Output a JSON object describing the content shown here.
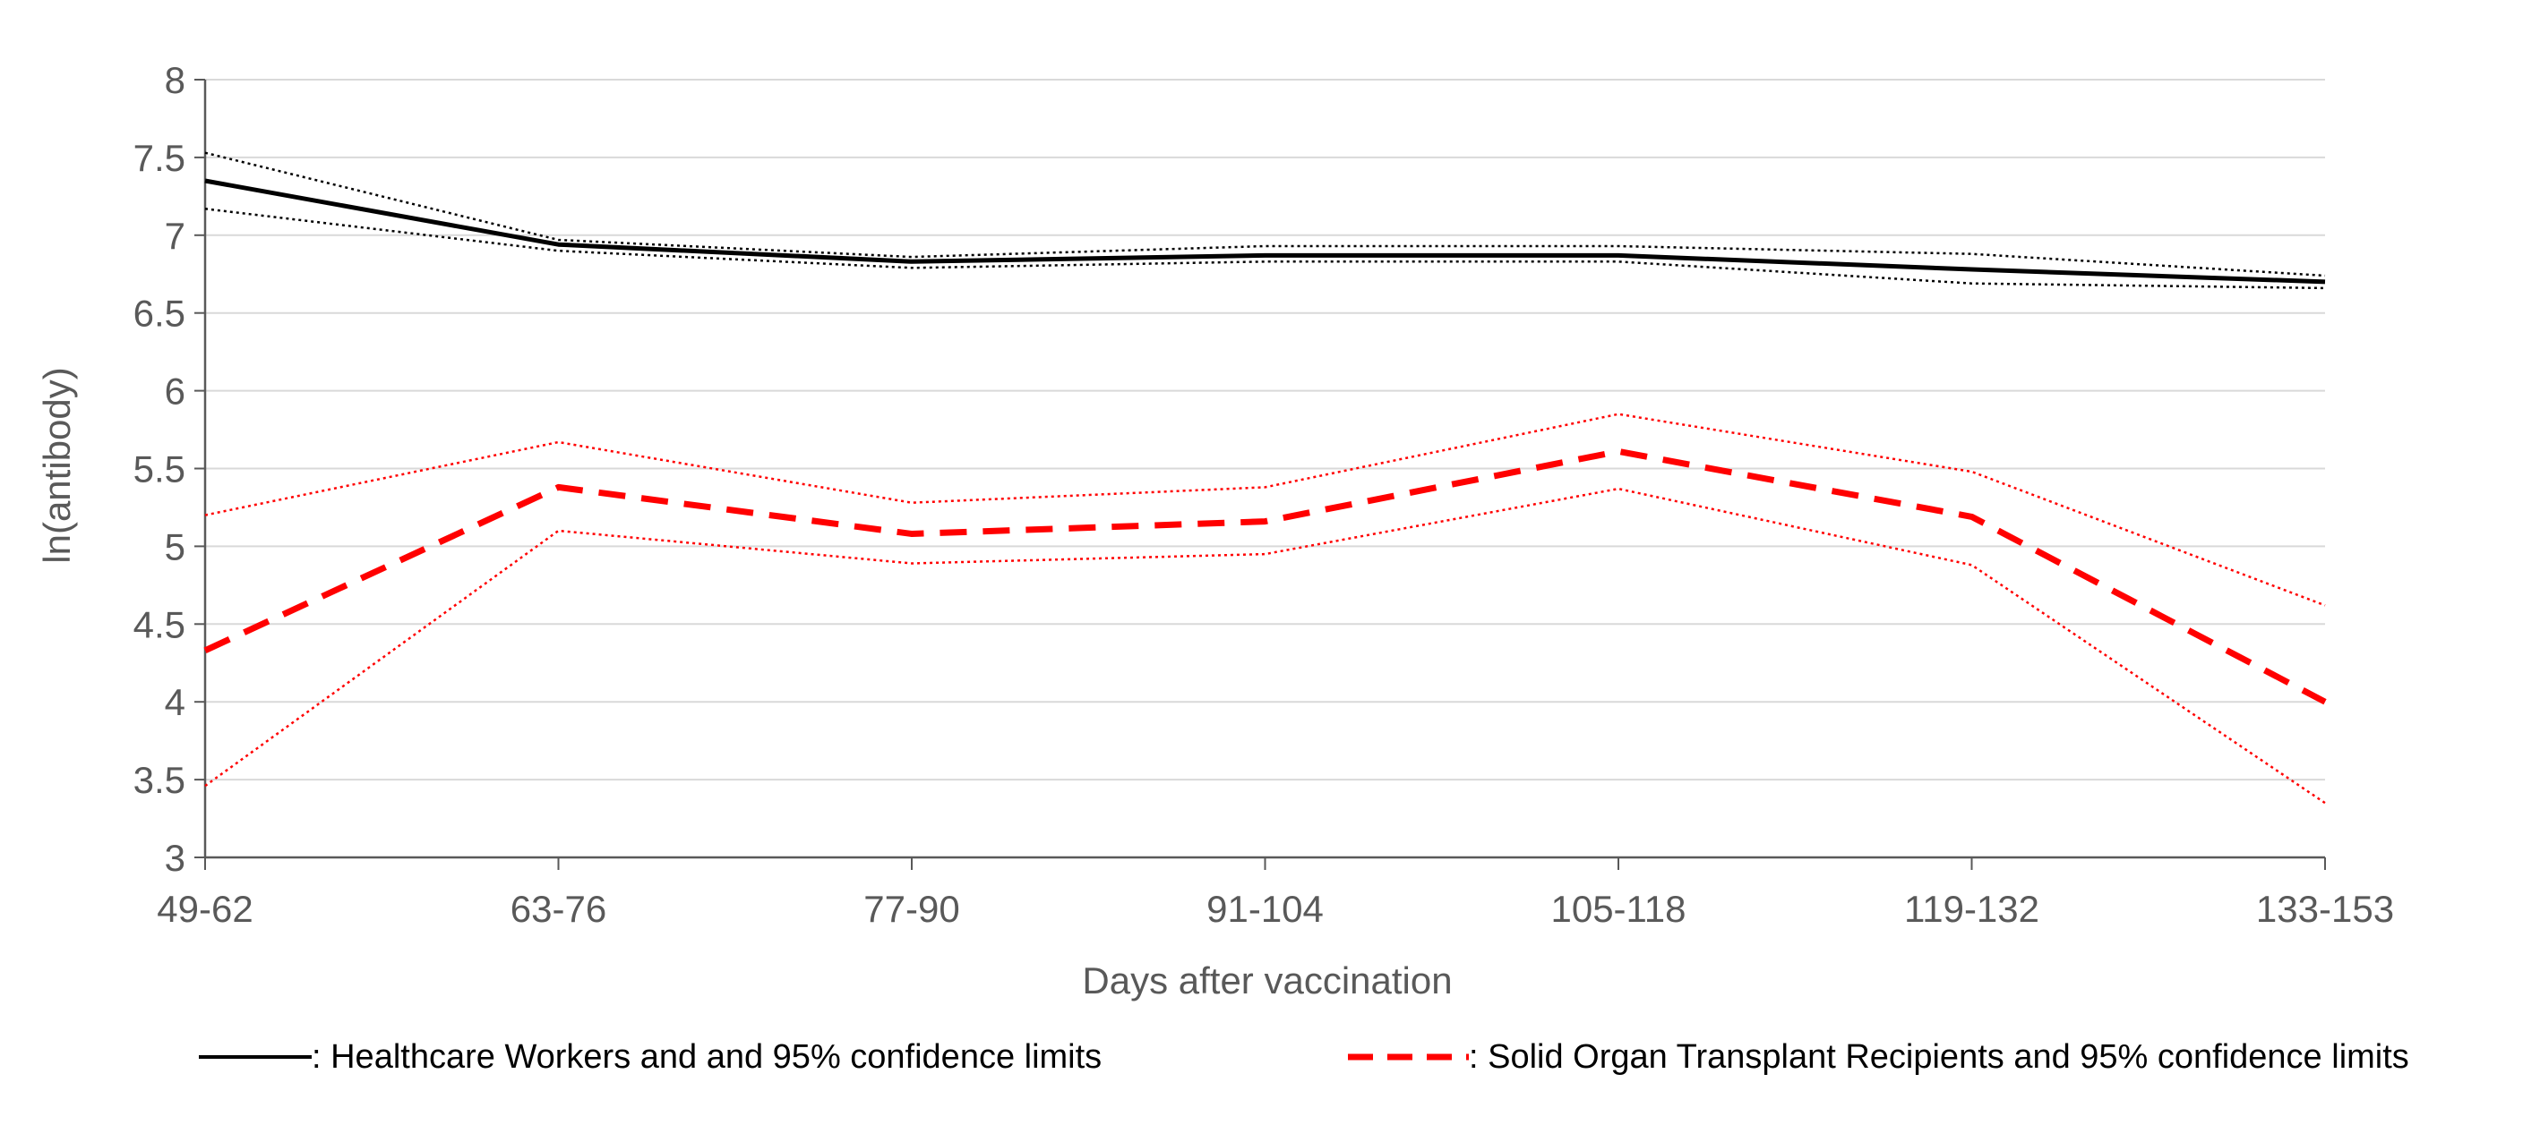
{
  "chart_data": {
    "type": "line",
    "title": "",
    "xlabel": "Days after vaccination",
    "ylabel": "ln(antibody)",
    "ylim": [
      3,
      8
    ],
    "yticks": [
      "3",
      "3.5",
      "4",
      "4.5",
      "5",
      "5.5",
      "6",
      "6.5",
      "7",
      "7.5",
      "8"
    ],
    "ytick_values": [
      3,
      3.5,
      4,
      4.5,
      5,
      5.5,
      6,
      6.5,
      7,
      7.5,
      8
    ],
    "grid": true,
    "categories": [
      "49-62",
      "63-76",
      "77-90",
      "91-104",
      "105-118",
      "119-132",
      "133-153"
    ],
    "series": [
      {
        "name": "Healthcare Workers",
        "role": "estimate",
        "color": "#000000",
        "style": "solid",
        "values": [
          7.35,
          6.94,
          6.83,
          6.87,
          6.87,
          6.78,
          6.7
        ]
      },
      {
        "name": "Healthcare Workers upper 95% CL",
        "role": "upper",
        "color": "#000000",
        "style": "dotted",
        "values": [
          7.53,
          6.97,
          6.86,
          6.93,
          6.93,
          6.88,
          6.74
        ]
      },
      {
        "name": "Healthcare Workers lower 95% CL",
        "role": "lower",
        "color": "#000000",
        "style": "dotted",
        "values": [
          7.17,
          6.9,
          6.79,
          6.83,
          6.83,
          6.69,
          6.66
        ]
      },
      {
        "name": "Solid Organ Transplant Recipients",
        "role": "estimate",
        "color": "#ff0000",
        "style": "dashed",
        "values": [
          4.33,
          5.38,
          5.08,
          5.16,
          5.61,
          5.19,
          4.0
        ]
      },
      {
        "name": "Solid Organ Transplant Recipients upper 95% CL",
        "role": "upper",
        "color": "#ff0000",
        "style": "dotted",
        "values": [
          5.2,
          5.67,
          5.28,
          5.38,
          5.85,
          5.48,
          4.62
        ]
      },
      {
        "name": "Solid Organ Transplant Recipients lower 95% CL",
        "role": "lower",
        "color": "#ff0000",
        "style": "dotted",
        "values": [
          3.46,
          5.1,
          4.89,
          4.95,
          5.37,
          4.88,
          3.35
        ]
      }
    ],
    "legend": {
      "position": "bottom",
      "entries": [
        {
          "label": ": Healthcare Workers and and 95% confidence limits",
          "color": "#000000",
          "style": "solid"
        },
        {
          "label": ": Solid Organ Transplant Recipients and 95% confidence limits",
          "color": "#ff0000",
          "style": "dashed"
        }
      ]
    }
  }
}
